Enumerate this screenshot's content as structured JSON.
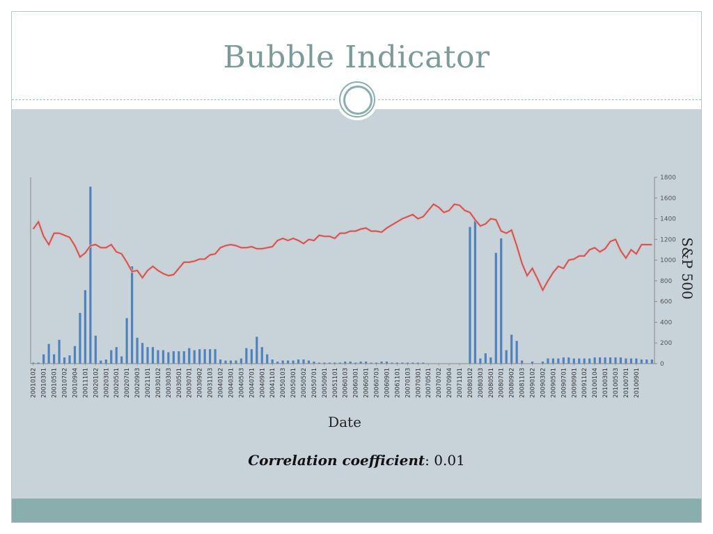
{
  "title": "Bubble Indicator",
  "correlation": {
    "label": "Correlation coefficient",
    "value": "0.01"
  },
  "colors": {
    "bars": "#4f81bd",
    "line": "#c0504d",
    "title": "#7b9b99"
  },
  "chart_data": {
    "type": "bar",
    "xlabel": "Date",
    "y2label": "S&P 500",
    "y2lim": [
      0,
      1800
    ],
    "y2ticks": [
      0,
      200,
      400,
      600,
      800,
      1000,
      1200,
      1400,
      1600,
      1800
    ],
    "grid": false,
    "categories": [
      "200101",
      "200102",
      "200103",
      "200104",
      "200105",
      "200106",
      "200107",
      "200108",
      "200109",
      "200110",
      "200111",
      "200112",
      "200201",
      "200202",
      "200203",
      "200204",
      "200205",
      "200206",
      "200207",
      "200208",
      "200209",
      "200210",
      "200211",
      "200212",
      "200301",
      "200302",
      "200303",
      "200304",
      "200305",
      "200306",
      "200307",
      "200308",
      "200309",
      "200310",
      "200311",
      "200312",
      "200401",
      "200402",
      "200403",
      "200404",
      "200405",
      "200406",
      "200407",
      "200408",
      "200409",
      "200410",
      "200411",
      "200412",
      "200501",
      "200502",
      "200503",
      "200504",
      "200505",
      "200506",
      "200507",
      "200508",
      "200509",
      "200510",
      "200511",
      "200512",
      "200601",
      "200602",
      "200603",
      "200604",
      "200605",
      "200606",
      "200607",
      "200608",
      "200609",
      "200610",
      "200611",
      "200612",
      "200701",
      "200702",
      "200703",
      "200704",
      "200705",
      "200706",
      "200707",
      "200708",
      "200709",
      "200710",
      "200711",
      "200712",
      "200801",
      "200802",
      "200803",
      "200804",
      "200805",
      "200806",
      "200807",
      "200808",
      "200809",
      "200810",
      "200811",
      "200812",
      "200901",
      "200902",
      "200903",
      "200904",
      "200905",
      "200906",
      "200907",
      "200908",
      "200909",
      "200910",
      "200911",
      "200912",
      "201001",
      "201002",
      "201003",
      "201004",
      "201005",
      "201006",
      "201007",
      "201008",
      "201009",
      "201010",
      "201011",
      "201012"
    ],
    "xtick_labels": [
      "20010102",
      "20010301",
      "20010501",
      "20010702",
      "20010904",
      "20011101",
      "20020102",
      "20020301",
      "20020501",
      "20020701",
      "20020903",
      "20021101",
      "20030102",
      "20030303",
      "20030501",
      "20030701",
      "20030902",
      "20031103",
      "20040102",
      "20040301",
      "20040503",
      "20040701",
      "20040901",
      "20041101",
      "20050103",
      "20050301",
      "20050502",
      "20050701",
      "20050901",
      "20051101",
      "20060103",
      "20060301",
      "20060501",
      "20060703",
      "20060901",
      "20061101",
      "20070103",
      "20070301",
      "20070501",
      "20070702",
      "20070904",
      "20071101",
      "20080102",
      "20080303",
      "20080501",
      "20080701",
      "20080902",
      "20081103",
      "20090102",
      "20090302",
      "20090501",
      "20090701",
      "20090901",
      "20091102",
      "20100104",
      "20100301",
      "20100503",
      "20100701",
      "20100901"
    ],
    "series": [
      {
        "kind": "bar",
        "axis": "left",
        "values": [
          0.1,
          0.1,
          0.9,
          1.9,
          0.9,
          2.3,
          0.6,
          0.8,
          1.7,
          4.9,
          7.1,
          17.1,
          2.7,
          0.3,
          0.4,
          1.3,
          1.6,
          0.7,
          4.4,
          9.4,
          2.5,
          2.0,
          1.6,
          1.6,
          1.3,
          1.3,
          1.1,
          1.2,
          1.2,
          1.2,
          1.5,
          1.3,
          1.4,
          1.4,
          1.4,
          1.4,
          0.4,
          0.3,
          0.3,
          0.3,
          0.5,
          1.5,
          1.4,
          2.6,
          1.6,
          0.9,
          0.4,
          0.2,
          0.3,
          0.3,
          0.3,
          0.4,
          0.4,
          0.3,
          0.2,
          0.1,
          0.1,
          0.1,
          0.1,
          0.1,
          0.2,
          0.2,
          0.1,
          0.2,
          0.2,
          0.1,
          0.1,
          0.2,
          0.2,
          0.1,
          0.1,
          0.1,
          0.1,
          0.1,
          0.1,
          0.1,
          0.0,
          0.0,
          0.0,
          0.0,
          0.0,
          0.0,
          0.0,
          0.0,
          13.2,
          13.9,
          0.5,
          1.0,
          0.6,
          10.7,
          12.1,
          1.3,
          2.8,
          2.2,
          0.3,
          0.0,
          0.2,
          0.0,
          0.2,
          0.5,
          0.5,
          0.5,
          0.6,
          0.6,
          0.5,
          0.5,
          0.5,
          0.5,
          0.6,
          0.6,
          0.6,
          0.6,
          0.6,
          0.6,
          0.5,
          0.5,
          0.5,
          0.4,
          0.4,
          0.4
        ]
      },
      {
        "kind": "line",
        "axis": "right",
        "name": "S&P 500",
        "values": [
          1300,
          1370,
          1230,
          1150,
          1260,
          1260,
          1240,
          1220,
          1140,
          1030,
          1070,
          1140,
          1150,
          1120,
          1120,
          1150,
          1080,
          1060,
          980,
          890,
          900,
          830,
          900,
          940,
          900,
          870,
          850,
          860,
          920,
          980,
          980,
          990,
          1010,
          1010,
          1050,
          1060,
          1120,
          1140,
          1150,
          1140,
          1120,
          1120,
          1130,
          1110,
          1110,
          1120,
          1130,
          1190,
          1210,
          1190,
          1210,
          1190,
          1160,
          1200,
          1190,
          1240,
          1230,
          1230,
          1210,
          1260,
          1260,
          1280,
          1280,
          1300,
          1310,
          1280,
          1280,
          1270,
          1310,
          1340,
          1370,
          1400,
          1420,
          1440,
          1400,
          1420,
          1480,
          1540,
          1510,
          1460,
          1480,
          1540,
          1530,
          1480,
          1460,
          1390,
          1330,
          1350,
          1400,
          1390,
          1280,
          1260,
          1290,
          1140,
          970,
          850,
          920,
          820,
          710,
          800,
          880,
          940,
          920,
          1000,
          1010,
          1040,
          1040,
          1100,
          1120,
          1080,
          1110,
          1180,
          1200,
          1090,
          1020,
          1100,
          1060,
          1150,
          1150,
          1150
        ]
      }
    ]
  }
}
